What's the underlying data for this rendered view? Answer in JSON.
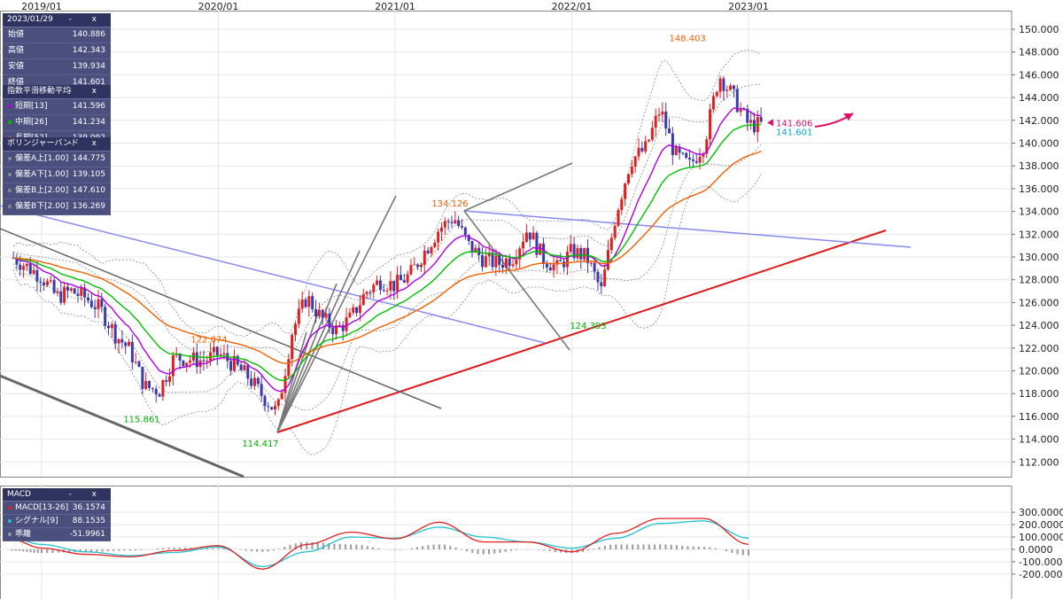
{
  "ohlc_panel": {
    "date": "2023/01/29",
    "controls": "- x",
    "rows": [
      {
        "label": "始値",
        "value": "140.886"
      },
      {
        "label": "高値",
        "value": "142.343"
      },
      {
        "label": "安値",
        "value": "139.934"
      },
      {
        "label": "終値",
        "value": "141.601"
      }
    ]
  },
  "ema_panel": {
    "title": "指数平滑移動平均",
    "controls": "- x",
    "rows": [
      {
        "label": "短期[13]",
        "value": "141.596",
        "color": "#b000e0"
      },
      {
        "label": "中期[26]",
        "value": "141.234",
        "color": "#00c000"
      },
      {
        "label": "長期[52]",
        "value": "139.092",
        "color": "#f06000"
      }
    ]
  },
  "bb_panel": {
    "title": "ボリンジャーバンド",
    "controls": "- x",
    "rows": [
      {
        "label": "偏差A上[1.00]",
        "value": "144.775"
      },
      {
        "label": "偏差A下[1.00]",
        "value": "139.105"
      },
      {
        "label": "偏差B上[2.00]",
        "value": "147.610"
      },
      {
        "label": "偏差B下[2.00]",
        "value": "136.269"
      }
    ]
  },
  "macd_panel": {
    "title": "MACD",
    "controls": "- x",
    "rows": [
      {
        "label": "MACD[13-26]",
        "value": "36.1574",
        "color": "#e02020"
      },
      {
        "label": "シグナル[9]",
        "value": "88.1535",
        "color": "#20c0d0"
      },
      {
        "label": "乖離",
        "value": "-51.9961",
        "color": "#9a9a9a"
      }
    ]
  },
  "annotations": {
    "high": "148.403",
    "low_2019": "115.861",
    "low_2020": "114.417",
    "peak_2020": "122.874",
    "peak_2021": "134.126",
    "low_2022": "124.393",
    "current_pink": "141.606",
    "current_cyan": "141.601"
  },
  "colors": {
    "up": "#e02020",
    "down": "#3a3ab0",
    "ema_short": "#b000e0",
    "ema_mid": "#00c000",
    "ema_long": "#f06000",
    "trend_red": "#e01818",
    "trend_blue": "#8888ee",
    "gann": "#777777",
    "macd": "#e02020",
    "signal": "#20c0d0",
    "hist": "#9a9a9a",
    "label_orange": "#f06000",
    "label_green": "#00b000",
    "label_pink": "#e0106a",
    "label_cyan": "#00a8d8"
  },
  "chart_data": [
    {
      "type": "candlestick",
      "x_tick_labels": [
        "2019/01",
        "2020/01",
        "2021/01",
        "2022/01",
        "2023/01"
      ],
      "y_tick_labels": [
        "112.000",
        "114.000",
        "116.000",
        "118.000",
        "120.000",
        "122.000",
        "124.000",
        "126.000",
        "128.000",
        "130.000",
        "132.000",
        "134.000",
        "136.000",
        "138.000",
        "140.000",
        "142.000",
        "144.000",
        "146.000",
        "148.000",
        "150.000"
      ],
      "ylim": [
        111,
        151
      ],
      "grid": true,
      "close_path": [
        [
          "2018/11",
          130.0
        ],
        [
          "2019/01",
          128.3
        ],
        [
          "2019/02",
          126.5
        ],
        [
          "2019/03",
          127.0
        ],
        [
          "2019/04",
          126.4
        ],
        [
          "2019/05",
          125.4
        ],
        [
          "2019/06",
          123.2
        ],
        [
          "2019/07",
          121.8
        ],
        [
          "2019/08",
          118.6
        ],
        [
          "2019/09",
          118.3
        ],
        [
          "2019/10",
          121.2
        ],
        [
          "2019/11",
          121.0
        ],
        [
          "2019/12",
          120.9
        ],
        [
          "2020/01",
          121.5
        ],
        [
          "2020/02",
          120.6
        ],
        [
          "2020/03",
          119.5
        ],
        [
          "2020/04",
          117.8
        ],
        [
          "2020/05",
          116.3
        ],
        [
          "2020/06",
          123.4
        ],
        [
          "2020/07",
          126.5
        ],
        [
          "2020/08",
          124.6
        ],
        [
          "2020/09",
          123.6
        ],
        [
          "2020/10",
          124.6
        ],
        [
          "2020/11",
          126.9
        ],
        [
          "2020/12",
          127.9
        ],
        [
          "2021/01",
          127.5
        ],
        [
          "2021/02",
          128.4
        ],
        [
          "2021/03",
          130.5
        ],
        [
          "2021/04",
          132.5
        ],
        [
          "2021/05",
          133.5
        ],
        [
          "2021/06",
          131.0
        ],
        [
          "2021/07",
          129.8
        ],
        [
          "2021/08",
          129.4
        ],
        [
          "2021/09",
          130.0
        ],
        [
          "2021/10",
          132.5
        ],
        [
          "2021/11",
          130.0
        ],
        [
          "2021/12",
          129.0
        ],
        [
          "2022/01",
          130.5
        ],
        [
          "2022/02",
          130.0
        ],
        [
          "2022/03",
          127.0
        ],
        [
          "2022/04",
          133.8
        ],
        [
          "2022/05",
          138.5
        ],
        [
          "2022/06",
          139.5
        ],
        [
          "2022/07",
          143.0
        ],
        [
          "2022/08",
          139.0
        ],
        [
          "2022/09",
          138.0
        ],
        [
          "2022/10",
          140.0
        ],
        [
          "2022/11",
          146.0
        ],
        [
          "2022/12",
          144.0
        ],
        [
          "2023/01",
          141.6
        ]
      ],
      "events": [
        {
          "date": "2019/08",
          "value": 115.861
        },
        {
          "date": "2020/03",
          "value": 114.417
        },
        {
          "date": "2019/10",
          "value": 122.874
        },
        {
          "date": "2021/04",
          "value": 134.126
        },
        {
          "date": "2022/01",
          "value": 124.393
        },
        {
          "date": "2022/10",
          "value": 148.403
        }
      ]
    },
    {
      "type": "line",
      "y_tick_labels": [
        "300.0000",
        "200.0000",
        "100.0000",
        "0.0000",
        "-100.0000",
        "-200.0000"
      ],
      "ylim": [
        -210,
        305
      ],
      "series": [
        {
          "name": "MACD[13-26]",
          "values": [
            [
              "2018/11",
              80
            ],
            [
              "2019/01",
              10
            ],
            [
              "2019/04",
              -40
            ],
            [
              "2019/07",
              -60
            ],
            [
              "2019/10",
              -10
            ],
            [
              "2020/01",
              30
            ],
            [
              "2020/04",
              -160
            ],
            [
              "2020/07",
              40
            ],
            [
              "2020/10",
              140
            ],
            [
              "2021/01",
              85
            ],
            [
              "2021/04",
              220
            ],
            [
              "2021/07",
              60
            ],
            [
              "2021/10",
              60
            ],
            [
              "2022/01",
              -20
            ],
            [
              "2022/04",
              130
            ],
            [
              "2022/07",
              250
            ],
            [
              "2022/10",
              250
            ],
            [
              "2023/01",
              40
            ]
          ]
        },
        {
          "name": "シグナル[9]",
          "values": [
            [
              "2018/11",
              90
            ],
            [
              "2019/01",
              40
            ],
            [
              "2019/04",
              -20
            ],
            [
              "2019/07",
              -50
            ],
            [
              "2019/10",
              -25
            ],
            [
              "2020/01",
              20
            ],
            [
              "2020/04",
              -140
            ],
            [
              "2020/07",
              -20
            ],
            [
              "2020/10",
              100
            ],
            [
              "2021/01",
              90
            ],
            [
              "2021/04",
              180
            ],
            [
              "2021/07",
              100
            ],
            [
              "2021/10",
              60
            ],
            [
              "2022/01",
              10
            ],
            [
              "2022/04",
              90
            ],
            [
              "2022/07",
              210
            ],
            [
              "2022/10",
              230
            ],
            [
              "2023/01",
              90
            ]
          ]
        },
        {
          "name": "乖離",
          "kind": "histogram"
        }
      ]
    }
  ]
}
